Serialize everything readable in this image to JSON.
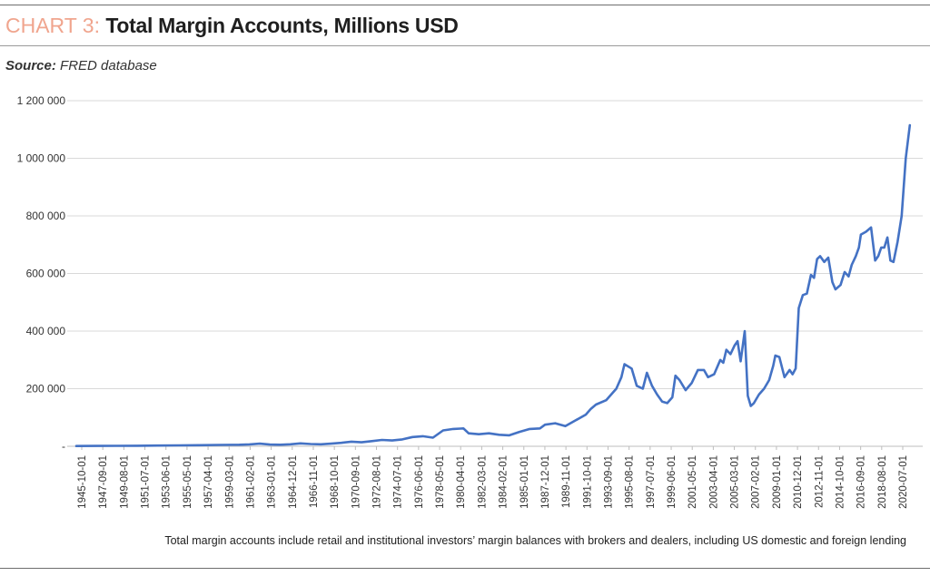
{
  "header": {
    "chart_prefix": "CHART 3:",
    "title": "Total Margin Accounts, Millions USD"
  },
  "source": {
    "label": "Source:",
    "text": "FRED database"
  },
  "footnote": "Total margin accounts include retail and institutional investors’ margin balances with brokers and dealers, including US domestic and foreign lending",
  "colors": {
    "line": "#4472c4",
    "grid": "#d9d9d9",
    "title_prefix": "#f0a58e"
  },
  "chart_data": {
    "type": "line",
    "title": "Total Margin Accounts, Millions USD",
    "xlabel": "",
    "ylabel": "",
    "ylim": [
      0,
      1200000
    ],
    "yticks": [
      0,
      200000,
      400000,
      600000,
      800000,
      1000000,
      1200000
    ],
    "ytick_labels": [
      "-",
      "200 000",
      "400 000",
      "600 000",
      "800 000",
      "1 000 000",
      "1 200 000"
    ],
    "grid": "horizontal",
    "legend": "none",
    "x_tick_labels": [
      "1945-10-01",
      "1947-09-01",
      "1949-08-01",
      "1951-07-01",
      "1953-06-01",
      "1955-05-01",
      "1957-04-01",
      "1959-03-01",
      "1961-02-01",
      "1963-01-01",
      "1964-12-01",
      "1966-11-01",
      "1968-10-01",
      "1970-09-01",
      "1972-08-01",
      "1974-07-01",
      "1976-06-01",
      "1978-05-01",
      "1980-04-01",
      "1982-03-01",
      "1984-02-01",
      "1985-01-01",
      "1987-12-01",
      "1989-11-01",
      "1991-10-01",
      "1993-09-01",
      "1995-08-01",
      "1997-07-01",
      "1999-06-01",
      "2001-05-01",
      "2003-04-01",
      "2005-03-01",
      "2007-02-01",
      "2009-01-01",
      "2010-12-01",
      "2012-11-01",
      "2014-10-01",
      "2016-09-01",
      "2018-08-01",
      "2020-07-01"
    ],
    "series": [
      {
        "points": [
          [
            0,
            1000
          ],
          [
            20,
            1300
          ],
          [
            40,
            1500
          ],
          [
            60,
            2000
          ],
          [
            80,
            2600
          ],
          [
            100,
            3200
          ],
          [
            120,
            3800
          ],
          [
            140,
            4600
          ],
          [
            160,
            5500
          ],
          [
            170,
            6500
          ],
          [
            180,
            9000
          ],
          [
            190,
            6000
          ],
          [
            200,
            5500
          ],
          [
            210,
            7000
          ],
          [
            220,
            10000
          ],
          [
            230,
            8000
          ],
          [
            240,
            7000
          ],
          [
            250,
            9000
          ],
          [
            260,
            12000
          ],
          [
            270,
            16000
          ],
          [
            280,
            14000
          ],
          [
            290,
            18000
          ],
          [
            300,
            22000
          ],
          [
            310,
            20000
          ],
          [
            320,
            24000
          ],
          [
            330,
            32000
          ],
          [
            340,
            35000
          ],
          [
            350,
            30000
          ],
          [
            360,
            55000
          ],
          [
            370,
            60000
          ],
          [
            380,
            62000
          ],
          [
            385,
            45000
          ],
          [
            395,
            42000
          ],
          [
            405,
            45000
          ],
          [
            415,
            40000
          ],
          [
            425,
            38000
          ],
          [
            435,
            50000
          ],
          [
            445,
            60000
          ],
          [
            455,
            62000
          ],
          [
            460,
            75000
          ],
          [
            470,
            80000
          ],
          [
            480,
            70000
          ],
          [
            490,
            90000
          ],
          [
            500,
            110000
          ],
          [
            505,
            130000
          ],
          [
            510,
            145000
          ],
          [
            520,
            160000
          ],
          [
            525,
            180000
          ],
          [
            530,
            200000
          ],
          [
            535,
            240000
          ],
          [
            538,
            285000
          ],
          [
            545,
            270000
          ],
          [
            550,
            210000
          ],
          [
            556,
            200000
          ],
          [
            560,
            255000
          ],
          [
            565,
            210000
          ],
          [
            570,
            180000
          ],
          [
            575,
            155000
          ],
          [
            580,
            150000
          ],
          [
            585,
            170000
          ],
          [
            588,
            245000
          ],
          [
            592,
            230000
          ],
          [
            598,
            195000
          ],
          [
            604,
            220000
          ],
          [
            610,
            265000
          ],
          [
            616,
            265000
          ],
          [
            620,
            240000
          ],
          [
            626,
            250000
          ],
          [
            632,
            300000
          ],
          [
            635,
            290000
          ],
          [
            638,
            335000
          ],
          [
            642,
            320000
          ],
          [
            646,
            350000
          ],
          [
            649,
            365000
          ],
          [
            652,
            295000
          ],
          [
            656,
            400000
          ],
          [
            659,
            175000
          ],
          [
            662,
            140000
          ],
          [
            665,
            150000
          ],
          [
            670,
            180000
          ],
          [
            675,
            200000
          ],
          [
            680,
            230000
          ],
          [
            684,
            280000
          ],
          [
            686,
            315000
          ],
          [
            690,
            310000
          ],
          [
            695,
            240000
          ],
          [
            700,
            265000
          ],
          [
            703,
            250000
          ],
          [
            706,
            270000
          ],
          [
            709,
            480000
          ],
          [
            713,
            525000
          ],
          [
            717,
            530000
          ],
          [
            721,
            595000
          ],
          [
            724,
            585000
          ],
          [
            727,
            650000
          ],
          [
            730,
            660000
          ],
          [
            734,
            640000
          ],
          [
            738,
            655000
          ],
          [
            742,
            570000
          ],
          [
            745,
            545000
          ],
          [
            750,
            560000
          ],
          [
            754,
            605000
          ],
          [
            758,
            590000
          ],
          [
            761,
            630000
          ],
          [
            765,
            660000
          ],
          [
            768,
            690000
          ],
          [
            770,
            735000
          ],
          [
            775,
            745000
          ],
          [
            780,
            760000
          ],
          [
            784,
            645000
          ],
          [
            787,
            660000
          ],
          [
            790,
            690000
          ],
          [
            793,
            690000
          ],
          [
            796,
            725000
          ],
          [
            799,
            645000
          ],
          [
            802,
            640000
          ],
          [
            806,
            710000
          ],
          [
            810,
            800000
          ],
          [
            814,
            1000000
          ],
          [
            818,
            1115000
          ]
        ]
      }
    ]
  }
}
